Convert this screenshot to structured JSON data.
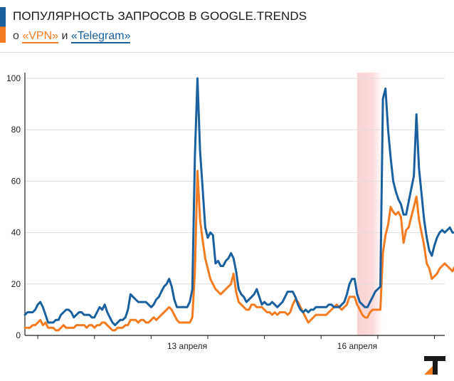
{
  "header": {
    "title": "ПОПУЛЯРНОСТЬ ЗАПРОСОВ В GOOGLE.TRENDS",
    "subtitle_prefix": "о ",
    "subtitle_and": " и ",
    "vpn_label": "«VPN»",
    "telegram_label": "«Telegram»"
  },
  "logo_icon": "tj-logo-icon",
  "colors": {
    "vpn": "#f47b20",
    "telegram": "#1a5f9e",
    "highlight": "#f9d3d3",
    "accent_blue": "#1a5f9e",
    "accent_orange": "#f47b20"
  },
  "chart_data": {
    "type": "line",
    "title": "ПОПУЛЯРНОСТЬ ЗАПРОСОВ В GOOGLE.TRENDS",
    "xlabel": "",
    "ylabel": "",
    "ylim": [
      0,
      100
    ],
    "xlim": [
      0,
      163
    ],
    "yticks": [
      0,
      20,
      40,
      60,
      80,
      100
    ],
    "xtick_labels": [
      {
        "x": 63,
        "label": "13 апреля"
      },
      {
        "x": 129,
        "label": "16 апреля"
      }
    ],
    "minor_x_ticks": [
      5,
      27,
      49,
      71,
      93,
      115,
      137,
      159
    ],
    "highlight_x": [
      129,
      139
    ],
    "grid": true,
    "legend": "subtitle",
    "series": [
      {
        "name": "«Telegram»",
        "values": [
          8,
          9,
          9,
          9,
          10,
          12,
          13,
          11,
          8,
          5,
          5,
          5,
          6,
          6,
          8,
          9,
          10,
          10,
          9,
          7,
          8,
          9,
          9,
          8,
          8,
          8,
          7,
          7,
          9,
          11,
          10,
          12,
          9,
          7,
          5,
          4,
          5,
          6,
          6,
          7,
          10,
          16,
          15,
          14,
          13,
          13,
          13,
          13,
          12,
          11,
          12,
          14,
          15,
          17,
          19,
          20,
          22,
          19,
          14,
          11,
          11,
          11,
          11,
          11,
          13,
          18,
          70,
          100,
          72,
          57,
          42,
          38,
          40,
          39,
          28,
          29,
          27,
          27,
          29,
          30,
          32,
          30,
          25,
          18,
          16,
          15,
          13,
          14,
          15,
          16,
          18,
          15,
          12,
          13,
          12,
          12,
          13,
          12,
          11,
          12,
          13,
          15,
          17,
          17,
          17,
          15,
          12,
          10,
          9,
          10,
          9,
          10,
          10,
          11,
          11,
          11,
          11,
          11,
          12,
          12,
          11,
          11,
          11,
          12,
          13,
          16,
          20,
          22,
          22,
          16,
          13,
          12,
          11,
          11,
          13,
          15,
          17,
          18,
          19,
          92,
          96,
          80,
          69,
          60,
          56,
          53,
          51,
          47,
          47,
          52,
          57,
          62,
          86,
          65,
          55,
          45,
          38,
          33,
          31,
          35,
          38,
          40,
          41,
          40,
          41,
          42,
          40,
          40,
          41,
          39,
          41,
          40,
          38
        ],
        "color": "#1a5f9e"
      },
      {
        "name": "«VPN»",
        "values": [
          3,
          3,
          3,
          4,
          4,
          5,
          6,
          4,
          5,
          3,
          3,
          3,
          2,
          2,
          3,
          4,
          3,
          3,
          3,
          3,
          4,
          4,
          4,
          4,
          3,
          4,
          4,
          3,
          4,
          4,
          5,
          5,
          4,
          3,
          2,
          2,
          3,
          3,
          3,
          4,
          4,
          6,
          6,
          6,
          5,
          6,
          6,
          5,
          5,
          6,
          7,
          6,
          7,
          8,
          9,
          10,
          11,
          10,
          8,
          6,
          5,
          5,
          5,
          5,
          5,
          7,
          25,
          64,
          45,
          37,
          30,
          26,
          22,
          20,
          18,
          17,
          16,
          17,
          18,
          19,
          20,
          24,
          17,
          13,
          12,
          11,
          10,
          10,
          12,
          12,
          11,
          11,
          11,
          10,
          9,
          9,
          8,
          9,
          8,
          9,
          9,
          9,
          8,
          9,
          12,
          14,
          13,
          11,
          9,
          7,
          5,
          6,
          7,
          8,
          8,
          8,
          8,
          8,
          9,
          10,
          11,
          12,
          11,
          10,
          11,
          12,
          15,
          15,
          15,
          12,
          10,
          8,
          7,
          7,
          9,
          10,
          10,
          10,
          10,
          32,
          39,
          43,
          50,
          48,
          47,
          48,
          46,
          36,
          41,
          42,
          46,
          50,
          54,
          45,
          40,
          35,
          28,
          26,
          22,
          23,
          24,
          26,
          27,
          28,
          27,
          26,
          25,
          27,
          25,
          25,
          24,
          27,
          30,
          30
        ],
        "color": "#f47b20"
      }
    ]
  }
}
